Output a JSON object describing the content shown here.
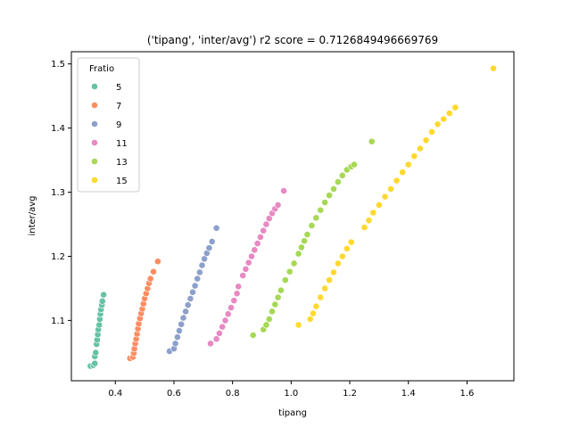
{
  "chart_data": {
    "type": "scatter",
    "title": "('tipang', 'inter/avg') r2 score = 0.7126849496669769",
    "xlabel": "tipang",
    "ylabel": "inter/avg",
    "xlim": [
      0.25,
      1.76
    ],
    "ylim": [
      1.006,
      1.519
    ],
    "xticks": [
      0.4,
      0.6,
      0.8,
      1.0,
      1.2,
      1.4,
      1.6
    ],
    "xtick_labels": [
      "0.4",
      "0.6",
      "0.8",
      "1.0",
      "1.2",
      "1.4",
      "1.6"
    ],
    "yticks": [
      1.1,
      1.2,
      1.3,
      1.4,
      1.5
    ],
    "ytick_labels": [
      "1.1",
      "1.2",
      "1.3",
      "1.4",
      "1.5"
    ],
    "grid": false,
    "legend": {
      "title": "Fratio",
      "placement": "top-left"
    },
    "series": [
      {
        "name": "5",
        "color": "#66c2a5",
        "points": [
          [
            0.315,
            1.029
          ],
          [
            0.325,
            1.03
          ],
          [
            0.33,
            1.033
          ],
          [
            0.33,
            1.044
          ],
          [
            0.333,
            1.05
          ],
          [
            0.336,
            1.063
          ],
          [
            0.338,
            1.07
          ],
          [
            0.34,
            1.078
          ],
          [
            0.342,
            1.086
          ],
          [
            0.345,
            1.093
          ],
          [
            0.347,
            1.102
          ],
          [
            0.349,
            1.11
          ],
          [
            0.351,
            1.117
          ],
          [
            0.354,
            1.124
          ],
          [
            0.356,
            1.13
          ],
          [
            0.36,
            1.14
          ]
        ]
      },
      {
        "name": "7",
        "color": "#fc8d62",
        "points": [
          [
            0.45,
            1.041
          ],
          [
            0.46,
            1.043
          ],
          [
            0.463,
            1.049
          ],
          [
            0.465,
            1.056
          ],
          [
            0.468,
            1.064
          ],
          [
            0.471,
            1.071
          ],
          [
            0.474,
            1.079
          ],
          [
            0.477,
            1.087
          ],
          [
            0.48,
            1.095
          ],
          [
            0.484,
            1.103
          ],
          [
            0.488,
            1.111
          ],
          [
            0.492,
            1.118
          ],
          [
            0.496,
            1.126
          ],
          [
            0.5,
            1.134
          ],
          [
            0.505,
            1.142
          ],
          [
            0.51,
            1.15
          ],
          [
            0.515,
            1.158
          ],
          [
            0.52,
            1.165
          ],
          [
            0.53,
            1.176
          ],
          [
            0.545,
            1.192
          ]
        ]
      },
      {
        "name": "9",
        "color": "#8da0cb",
        "points": [
          [
            0.585,
            1.052
          ],
          [
            0.6,
            1.056
          ],
          [
            0.605,
            1.064
          ],
          [
            0.612,
            1.074
          ],
          [
            0.618,
            1.084
          ],
          [
            0.625,
            1.094
          ],
          [
            0.632,
            1.104
          ],
          [
            0.64,
            1.114
          ],
          [
            0.648,
            1.124
          ],
          [
            0.656,
            1.134
          ],
          [
            0.664,
            1.144
          ],
          [
            0.672,
            1.154
          ],
          [
            0.68,
            1.165
          ],
          [
            0.688,
            1.175
          ],
          [
            0.696,
            1.186
          ],
          [
            0.704,
            1.196
          ],
          [
            0.712,
            1.205
          ],
          [
            0.72,
            1.213
          ],
          [
            0.73,
            1.223
          ],
          [
            0.745,
            1.244
          ]
        ]
      },
      {
        "name": "11",
        "color": "#e78ac3",
        "points": [
          [
            0.725,
            1.064
          ],
          [
            0.745,
            1.071
          ],
          [
            0.755,
            1.08
          ],
          [
            0.765,
            1.09
          ],
          [
            0.775,
            1.1
          ],
          [
            0.785,
            1.11
          ],
          [
            0.795,
            1.12
          ],
          [
            0.805,
            1.131
          ],
          [
            0.815,
            1.142
          ],
          [
            0.82,
            1.153
          ],
          [
            0.835,
            1.17
          ],
          [
            0.845,
            1.18
          ],
          [
            0.855,
            1.19
          ],
          [
            0.865,
            1.2
          ],
          [
            0.875,
            1.21
          ],
          [
            0.885,
            1.22
          ],
          [
            0.895,
            1.23
          ],
          [
            0.905,
            1.24
          ],
          [
            0.915,
            1.25
          ],
          [
            0.925,
            1.259
          ],
          [
            0.935,
            1.267
          ],
          [
            0.945,
            1.274
          ],
          [
            0.955,
            1.28
          ],
          [
            0.975,
            1.302
          ]
        ]
      },
      {
        "name": "13",
        "color": "#a6d854",
        "points": [
          [
            0.87,
            1.077
          ],
          [
            0.905,
            1.086
          ],
          [
            0.915,
            1.093
          ],
          [
            0.925,
            1.102
          ],
          [
            0.935,
            1.114
          ],
          [
            0.945,
            1.125
          ],
          [
            0.955,
            1.136
          ],
          [
            0.965,
            1.147
          ],
          [
            0.98,
            1.163
          ],
          [
            0.995,
            1.176
          ],
          [
            1.01,
            1.189
          ],
          [
            1.025,
            1.204
          ],
          [
            1.035,
            1.214
          ],
          [
            1.045,
            1.224
          ],
          [
            1.055,
            1.234
          ],
          [
            1.07,
            1.248
          ],
          [
            1.085,
            1.26
          ],
          [
            1.1,
            1.272
          ],
          [
            1.115,
            1.284
          ],
          [
            1.13,
            1.295
          ],
          [
            1.145,
            1.305
          ],
          [
            1.16,
            1.316
          ],
          [
            1.175,
            1.326
          ],
          [
            1.19,
            1.335
          ],
          [
            1.205,
            1.34
          ],
          [
            1.215,
            1.343
          ],
          [
            1.275,
            1.379
          ]
        ]
      },
      {
        "name": "15",
        "color": "#ffd92f",
        "points": [
          [
            1.025,
            1.093
          ],
          [
            1.065,
            1.102
          ],
          [
            1.075,
            1.111
          ],
          [
            1.085,
            1.122
          ],
          [
            1.1,
            1.136
          ],
          [
            1.115,
            1.15
          ],
          [
            1.13,
            1.163
          ],
          [
            1.145,
            1.175
          ],
          [
            1.16,
            1.189
          ],
          [
            1.175,
            1.2
          ],
          [
            1.19,
            1.212
          ],
          [
            1.205,
            1.222
          ],
          [
            1.25,
            1.245
          ],
          [
            1.265,
            1.256
          ],
          [
            1.28,
            1.268
          ],
          [
            1.3,
            1.28
          ],
          [
            1.32,
            1.293
          ],
          [
            1.34,
            1.305
          ],
          [
            1.36,
            1.318
          ],
          [
            1.38,
            1.331
          ],
          [
            1.4,
            1.343
          ],
          [
            1.42,
            1.356
          ],
          [
            1.44,
            1.368
          ],
          [
            1.46,
            1.381
          ],
          [
            1.48,
            1.394
          ],
          [
            1.5,
            1.406
          ],
          [
            1.52,
            1.414
          ],
          [
            1.54,
            1.423
          ],
          [
            1.56,
            1.432
          ],
          [
            1.69,
            1.493
          ]
        ]
      }
    ]
  }
}
